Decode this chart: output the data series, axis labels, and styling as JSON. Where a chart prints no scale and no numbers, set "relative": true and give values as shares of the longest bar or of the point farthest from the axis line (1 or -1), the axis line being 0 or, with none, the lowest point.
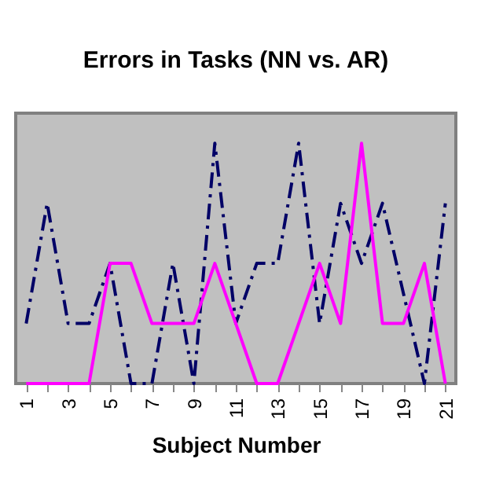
{
  "chart_data": {
    "type": "line",
    "title": "Errors in Tasks (NN vs. AR)",
    "xlabel": "Subject Number",
    "categories": [
      "1",
      null,
      "3",
      null,
      "5",
      null,
      "7",
      null,
      "9",
      null,
      "11",
      null,
      "13",
      null,
      "15",
      null,
      "17",
      null,
      "19",
      null,
      "21"
    ],
    "relative": true,
    "grid": false,
    "marker": "none",
    "series": [
      {
        "color": "#000066",
        "line_style": "dashed",
        "values": [
          0.25,
          0.75,
          0.25,
          0.25,
          0.5,
          0,
          0,
          0.5,
          0,
          1,
          0.25,
          0.5,
          0.5,
          1,
          0.25,
          0.75,
          0.5,
          0.75,
          0.375,
          0,
          0.75
        ]
      },
      {
        "color": "#ff00ff",
        "line_style": "solid",
        "values": [
          0,
          0,
          0,
          0,
          0.5,
          0.5,
          0.25,
          0.25,
          0.25,
          0.5,
          0.25,
          0,
          0,
          0.25,
          0.5,
          0.25,
          1,
          0.25,
          0.25,
          0.5,
          0
        ]
      }
    ]
  }
}
